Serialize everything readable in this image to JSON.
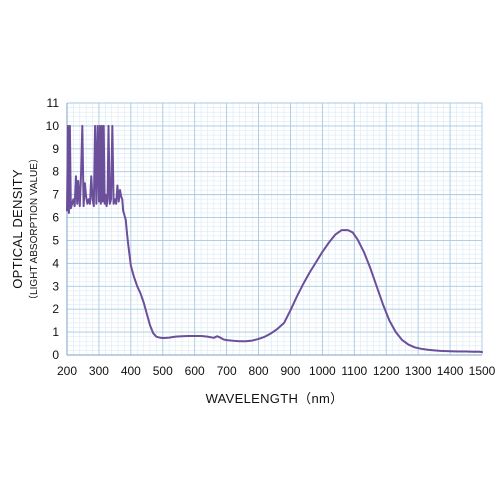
{
  "chart_data": {
    "type": "line",
    "xlabel": "WAVELENGTH（nm）",
    "ylabel": "OPTICAL DENSITY",
    "ylabel_sub": "（LIGHT ABSORPTION VALUE）",
    "xlim": [
      200,
      1500
    ],
    "ylim": [
      0,
      11
    ],
    "x_ticks": [
      200,
      300,
      400,
      500,
      600,
      700,
      800,
      900,
      1000,
      1100,
      1200,
      1300,
      1400,
      1500
    ],
    "y_ticks": [
      0,
      1,
      2,
      3,
      4,
      5,
      6,
      7,
      8,
      9,
      10,
      11
    ],
    "grid": true,
    "legend": "none",
    "series": [
      {
        "color": "#6b4f9a",
        "x": [
          200,
          203,
          206,
          209,
          212,
          216,
          220,
          224,
          228,
          232,
          235,
          240,
          244,
          248,
          252,
          256,
          260,
          264,
          268,
          272,
          276,
          280,
          284,
          288,
          292,
          296,
          300,
          303,
          306,
          309,
          312,
          315,
          318,
          321,
          324,
          327,
          330,
          334,
          338,
          342,
          346,
          350,
          354,
          358,
          362,
          366,
          370,
          373,
          376,
          380,
          384,
          388,
          392,
          400,
          410,
          420,
          430,
          440,
          450,
          460,
          470,
          480,
          490,
          500,
          510,
          520,
          530,
          540,
          560,
          580,
          600,
          620,
          640,
          660,
          670,
          680,
          690,
          700,
          720,
          740,
          760,
          780,
          800,
          820,
          840,
          860,
          880,
          900,
          920,
          940,
          960,
          980,
          1000,
          1020,
          1040,
          1060,
          1080,
          1095,
          1110,
          1130,
          1150,
          1170,
          1190,
          1210,
          1230,
          1250,
          1270,
          1290,
          1310,
          1330,
          1350,
          1370,
          1390,
          1410,
          1430,
          1450,
          1470,
          1490,
          1500
        ],
        "values": [
          6.3,
          10.0,
          6.2,
          10.0,
          6.4,
          6.6,
          6.8,
          6.5,
          7.8,
          6.6,
          7.6,
          6.5,
          7.9,
          10.0,
          6.5,
          7.5,
          6.9,
          6.6,
          6.8,
          6.6,
          7.8,
          6.8,
          6.5,
          10.0,
          6.6,
          10.0,
          6.7,
          10.0,
          6.6,
          10.0,
          6.7,
          10.0,
          6.6,
          7.0,
          6.5,
          6.8,
          10.0,
          6.6,
          6.8,
          10.0,
          6.6,
          6.8,
          6.6,
          7.4,
          6.7,
          7.2,
          6.9,
          6.8,
          6.3,
          6.1,
          5.9,
          5.3,
          4.8,
          3.9,
          3.4,
          3.0,
          2.7,
          2.3,
          1.8,
          1.3,
          0.95,
          0.8,
          0.76,
          0.74,
          0.75,
          0.76,
          0.78,
          0.8,
          0.82,
          0.83,
          0.83,
          0.83,
          0.8,
          0.75,
          0.82,
          0.76,
          0.68,
          0.65,
          0.62,
          0.6,
          0.6,
          0.63,
          0.7,
          0.8,
          0.95,
          1.15,
          1.4,
          1.95,
          2.55,
          3.1,
          3.6,
          4.05,
          4.5,
          4.9,
          5.25,
          5.45,
          5.45,
          5.35,
          5.05,
          4.5,
          3.8,
          3.0,
          2.2,
          1.5,
          1.0,
          0.65,
          0.45,
          0.33,
          0.27,
          0.23,
          0.2,
          0.18,
          0.17,
          0.16,
          0.15,
          0.15,
          0.14,
          0.14,
          0.13
        ]
      }
    ]
  }
}
